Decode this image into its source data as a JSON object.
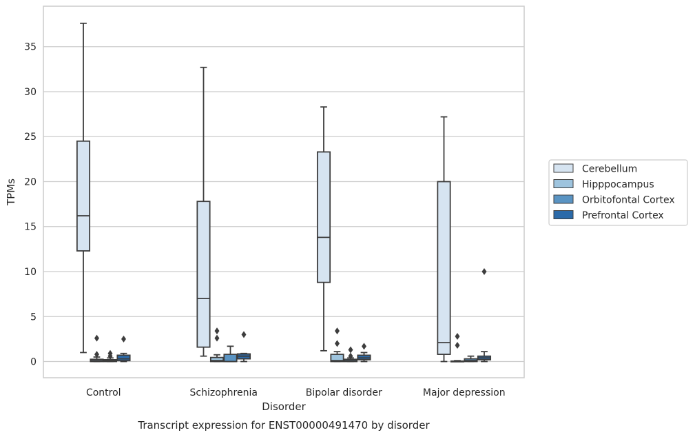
{
  "chart_data": {
    "type": "boxplot",
    "caption": "Transcript expression for ENST00000491470 by disorder",
    "xlabel": "Disorder",
    "ylabel": "TPMs",
    "ylim": [
      -1.8,
      39.5
    ],
    "yticks": [
      0,
      5,
      10,
      15,
      20,
      25,
      30,
      35
    ],
    "grid": "horizontal",
    "legend_placement": "right",
    "categories": [
      "Control",
      "Schizophrenia",
      "Bipolar disorder",
      "Major depression"
    ],
    "series": [
      {
        "name": "Cerebellum",
        "color": "#d6e4f1",
        "boxes": [
          {
            "whislo": 1.0,
            "q1": 12.3,
            "med": 16.2,
            "q3": 24.5,
            "whishi": 37.6,
            "fliers": []
          },
          {
            "whislo": 0.6,
            "q1": 1.6,
            "med": 7.0,
            "q3": 17.8,
            "whishi": 32.7,
            "fliers": []
          },
          {
            "whislo": 1.2,
            "q1": 8.8,
            "med": 13.8,
            "q3": 23.3,
            "whishi": 28.3,
            "fliers": []
          },
          {
            "whislo": 0.0,
            "q1": 0.8,
            "med": 2.1,
            "q3": 20.0,
            "whishi": 27.2,
            "fliers": []
          }
        ]
      },
      {
        "name": "Hipppocampus",
        "color": "#9ec4de",
        "boxes": [
          {
            "whislo": 0.0,
            "q1": 0.0,
            "med": 0.1,
            "q3": 0.25,
            "whishi": 0.5,
            "fliers": [
              0.8,
              2.6
            ]
          },
          {
            "whislo": 0.0,
            "q1": 0.0,
            "med": 0.1,
            "q3": 0.45,
            "whishi": 0.75,
            "fliers": [
              2.6,
              3.4
            ]
          },
          {
            "whislo": 0.0,
            "q1": 0.0,
            "med": 0.1,
            "q3": 0.8,
            "whishi": 1.1,
            "fliers": [
              2.0,
              3.4
            ]
          },
          {
            "whislo": 0.0,
            "q1": 0.0,
            "med": 0.0,
            "q3": 0.05,
            "whishi": 0.1,
            "fliers": [
              1.8,
              2.8
            ]
          }
        ]
      },
      {
        "name": "Orbitofontal Cortex",
        "color": "#5a94c3",
        "boxes": [
          {
            "whislo": 0.0,
            "q1": 0.0,
            "med": 0.1,
            "q3": 0.2,
            "whishi": 0.4,
            "fliers": [
              0.6,
              0.9
            ]
          },
          {
            "whislo": 0.0,
            "q1": 0.0,
            "med": 0.0,
            "q3": 0.8,
            "whishi": 1.7,
            "fliers": []
          },
          {
            "whislo": 0.0,
            "q1": 0.0,
            "med": 0.1,
            "q3": 0.25,
            "whishi": 0.4,
            "fliers": [
              0.6,
              1.3
            ]
          },
          {
            "whislo": 0.0,
            "q1": 0.0,
            "med": 0.1,
            "q3": 0.3,
            "whishi": 0.6,
            "fliers": []
          }
        ]
      },
      {
        "name": "Prefrontal Cortex",
        "color": "#2b6aa9",
        "boxes": [
          {
            "whislo": 0.0,
            "q1": 0.1,
            "med": 0.3,
            "q3": 0.7,
            "whishi": 0.9,
            "fliers": [
              2.5
            ]
          },
          {
            "whislo": 0.0,
            "q1": 0.3,
            "med": 0.6,
            "q3": 0.85,
            "whishi": 0.9,
            "fliers": [
              3.0
            ]
          },
          {
            "whislo": 0.0,
            "q1": 0.2,
            "med": 0.4,
            "q3": 0.7,
            "whishi": 1.0,
            "fliers": [
              1.7
            ]
          },
          {
            "whislo": 0.0,
            "q1": 0.2,
            "med": 0.4,
            "q3": 0.6,
            "whishi": 1.1,
            "fliers": [
              10.0
            ]
          }
        ]
      }
    ]
  }
}
